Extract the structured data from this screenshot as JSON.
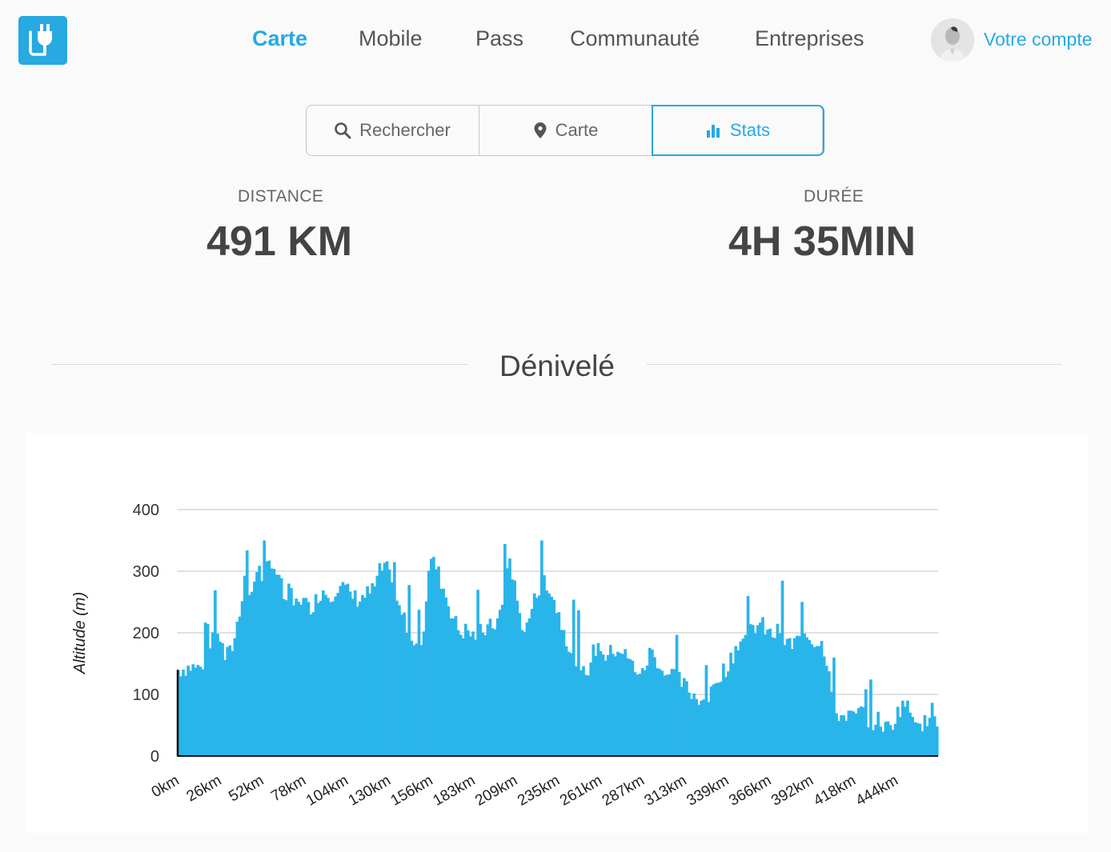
{
  "nav": {
    "items": [
      "Carte",
      "Mobile",
      "Pass",
      "Communauté",
      "Entreprises"
    ],
    "active": "Carte",
    "account_label": "Votre compte"
  },
  "tabs": {
    "search": "Rechercher",
    "map": "Carte",
    "stats": "Stats",
    "active": "Stats"
  },
  "stats": {
    "distance_label": "DISTANCE",
    "distance_value": "491 KM",
    "duration_label": "DURÉE",
    "duration_value": "4H 35MIN"
  },
  "section": {
    "title": "Dénivelé"
  },
  "colors": {
    "accent": "#27a9e1",
    "bar": "#29b5ea"
  },
  "icons": [
    "plug-logo-icon",
    "search-icon",
    "map-pin-icon",
    "bar-chart-icon"
  ],
  "chart_data": {
    "type": "bar",
    "ylabel": "Altitude (m)",
    "ylim": [
      0,
      400
    ],
    "yticks": [
      0,
      100,
      200,
      300,
      400
    ],
    "xticks": [
      "0km",
      "26km",
      "52km",
      "78km",
      "104km",
      "130km",
      "156km",
      "183km",
      "209km",
      "235km",
      "261km",
      "287km",
      "313km",
      "339km",
      "366km",
      "392km",
      "418km",
      "444km"
    ],
    "xlim": [
      0,
      491
    ],
    "grid": true,
    "series": [
      {
        "points": [
          [
            0,
            140
          ],
          [
            8,
            145
          ],
          [
            14,
            142
          ],
          [
            18,
            160
          ],
          [
            21,
            180
          ],
          [
            24,
            220
          ],
          [
            27,
            190
          ],
          [
            30,
            160
          ],
          [
            34,
            170
          ],
          [
            37,
            200
          ],
          [
            40,
            240
          ],
          [
            43,
            300
          ],
          [
            45,
            260
          ],
          [
            48,
            270
          ],
          [
            51,
            310
          ],
          [
            54,
            290
          ],
          [
            57,
            305
          ],
          [
            60,
            320
          ],
          [
            63,
            300
          ],
          [
            66,
            280
          ],
          [
            69,
            250
          ],
          [
            72,
            270
          ],
          [
            75,
            240
          ],
          [
            78,
            260
          ],
          [
            81,
            250
          ],
          [
            84,
            240
          ],
          [
            88,
            250
          ],
          [
            93,
            270
          ],
          [
            98,
            260
          ],
          [
            104,
            280
          ],
          [
            108,
            270
          ],
          [
            112,
            260
          ],
          [
            116,
            255
          ],
          [
            120,
            260
          ],
          [
            126,
            270
          ],
          [
            130,
            300
          ],
          [
            134,
            310
          ],
          [
            138,
            270
          ],
          [
            142,
            240
          ],
          [
            146,
            220
          ],
          [
            150,
            200
          ],
          [
            154,
            180
          ],
          [
            158,
            200
          ],
          [
            162,
            320
          ],
          [
            166,
            310
          ],
          [
            170,
            280
          ],
          [
            174,
            250
          ],
          [
            178,
            220
          ],
          [
            182,
            200
          ],
          [
            186,
            205
          ],
          [
            190,
            195
          ],
          [
            194,
            200
          ],
          [
            198,
            205
          ],
          [
            202,
            210
          ],
          [
            206,
            220
          ],
          [
            210,
            250
          ],
          [
            213,
            330
          ],
          [
            216,
            290
          ],
          [
            220,
            230
          ],
          [
            224,
            200
          ],
          [
            228,
            240
          ],
          [
            232,
            270
          ],
          [
            236,
            290
          ],
          [
            240,
            270
          ],
          [
            244,
            240
          ],
          [
            248,
            210
          ],
          [
            252,
            180
          ],
          [
            256,
            160
          ],
          [
            260,
            130
          ],
          [
            264,
            140
          ],
          [
            268,
            170
          ],
          [
            272,
            180
          ],
          [
            276,
            160
          ],
          [
            280,
            170
          ],
          [
            284,
            175
          ],
          [
            288,
            165
          ],
          [
            292,
            150
          ],
          [
            296,
            140
          ],
          [
            300,
            130
          ],
          [
            304,
            170
          ],
          [
            308,
            160
          ],
          [
            312,
            140
          ],
          [
            316,
            130
          ],
          [
            320,
            135
          ],
          [
            324,
            120
          ],
          [
            328,
            110
          ],
          [
            332,
            100
          ],
          [
            336,
            95
          ],
          [
            340,
            90
          ],
          [
            344,
            100
          ],
          [
            348,
            130
          ],
          [
            352,
            140
          ],
          [
            356,
            150
          ],
          [
            360,
            180
          ],
          [
            364,
            190
          ],
          [
            368,
            200
          ],
          [
            372,
            210
          ],
          [
            376,
            215
          ],
          [
            380,
            200
          ],
          [
            384,
            195
          ],
          [
            388,
            205
          ],
          [
            392,
            185
          ],
          [
            396,
            180
          ],
          [
            400,
            190
          ],
          [
            404,
            200
          ],
          [
            408,
            190
          ],
          [
            412,
            185
          ],
          [
            416,
            180
          ],
          [
            420,
            140
          ],
          [
            424,
            70
          ],
          [
            428,
            65
          ],
          [
            432,
            70
          ],
          [
            436,
            60
          ],
          [
            440,
            75
          ],
          [
            444,
            60
          ],
          [
            448,
            55
          ],
          [
            452,
            60
          ],
          [
            456,
            45
          ],
          [
            460,
            50
          ],
          [
            464,
            70
          ],
          [
            468,
            90
          ],
          [
            472,
            70
          ],
          [
            476,
            65
          ],
          [
            480,
            55
          ],
          [
            484,
            50
          ],
          [
            488,
            55
          ],
          [
            491,
            45
          ]
        ]
      }
    ]
  }
}
